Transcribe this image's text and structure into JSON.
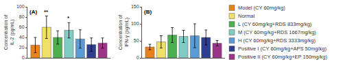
{
  "chart_data": [
    {
      "type": "bar",
      "title": "(A)",
      "y_label": "Concentration of\nIL-2 (pg/mL)",
      "categories": [
        "Model (CY 60mg/kg)",
        "Normal",
        "L (CY 60mg/kg+RDS 833mg/kg)",
        "M (CY 60mg/kg+RDS 1667mg/kg)",
        "H (CY 60mg/kg+RDS 3333mg/kg)",
        "Positive I (CY 60mg/kg+APS 50mg/kg)",
        "Positive II (CY 60mg/kg+EP 150mg/kg)"
      ],
      "values": [
        25,
        60,
        40,
        54,
        37,
        26,
        29
      ],
      "errors": [
        15,
        22,
        13,
        15,
        18,
        13,
        10
      ],
      "colors": [
        "#E8821A",
        "#F0E068",
        "#4CAF50",
        "#80CBC4",
        "#5B9BD5",
        "#2E3F8F",
        "#9C3587"
      ],
      "annotations": [
        null,
        "**",
        null,
        "*",
        null,
        null,
        null
      ],
      "ylim": [
        0,
        100
      ],
      "yticks": [
        0,
        20,
        40,
        60,
        80,
        100
      ],
      "grid": false,
      "tick_labels": "y"
    },
    {
      "type": "bar",
      "title": "(B)",
      "y_label": "Concentration of\nIFN-γ (pg/mL)",
      "categories": [
        "Model (CY 60mg/kg)",
        "Normal",
        "L (CY 60mg/kg+RDS 833mg/kg)",
        "M (CY 60mg/kg+RDS 1667mg/kg)",
        "H (CY 60mg/kg+RDS 3333mg/kg)",
        "Positive I (CY 60mg/kg+APS 50mg/kg)",
        "Positive II (CY 60mg/kg+EP 150mg/kg)"
      ],
      "values": [
        32,
        47,
        67,
        63,
        65,
        60,
        43
      ],
      "errors": [
        8,
        18,
        22,
        18,
        35,
        22,
        8
      ],
      "colors": [
        "#E8821A",
        "#F0E068",
        "#4CAF50",
        "#80CBC4",
        "#5B9BD5",
        "#2E3F8F",
        "#9C3587"
      ],
      "ylim": [
        0,
        150
      ],
      "yticks": [
        0,
        50,
        100,
        150
      ],
      "grid": false,
      "tick_labels": "y",
      "legend": "right"
    }
  ]
}
